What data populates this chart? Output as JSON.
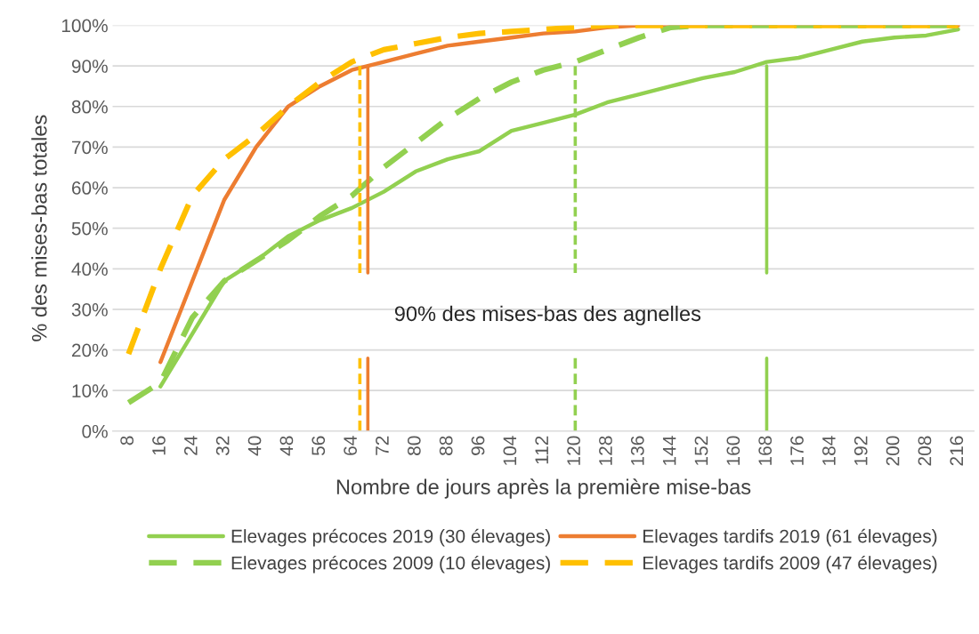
{
  "chart_data": {
    "type": "line",
    "xlabel": "Nombre de jours après la première mise-bas",
    "ylabel": "% des mises-bas totales",
    "annotations": [
      "90% des mises-bas des agnelles"
    ],
    "x": [
      8,
      16,
      24,
      32,
      40,
      48,
      56,
      64,
      72,
      80,
      88,
      96,
      104,
      112,
      120,
      128,
      136,
      144,
      152,
      160,
      168,
      176,
      184,
      192,
      200,
      208,
      216
    ],
    "series": [
      {
        "name": "Elevages précoces 2019 (30 élevages)",
        "color": "#92d050",
        "line_style": "solid",
        "values": [
          null,
          11,
          24,
          37,
          42,
          48,
          52,
          55,
          59,
          64,
          67,
          69,
          74,
          76,
          78,
          81,
          83,
          85,
          87,
          88.5,
          91,
          92,
          94,
          96,
          97,
          97.5,
          99
        ]
      },
      {
        "name": "Elevages tardifs 2019 (61 élevages)",
        "color": "#ed7d31",
        "line_style": "solid",
        "values": [
          null,
          17,
          37,
          57,
          70,
          80,
          85,
          89,
          91,
          93,
          95,
          96,
          97,
          98,
          98.5,
          99.5,
          100,
          100,
          100,
          100,
          100,
          100,
          100,
          100,
          100,
          100,
          100
        ]
      },
      {
        "name": "Elevages précoces 2009 (10 élevages)",
        "color": "#92d050",
        "line_style": "dashed",
        "values": [
          7,
          12,
          28,
          37,
          42,
          47,
          53,
          58,
          65,
          71,
          77,
          82,
          86,
          89,
          91,
          94,
          97,
          99.5,
          100,
          100,
          100,
          100,
          100,
          100,
          100,
          100,
          100
        ]
      },
      {
        "name": "Elevages tardifs 2009 (47 élevages)",
        "color": "#ffc000",
        "line_style": "dashed",
        "values": [
          19,
          40,
          58,
          67,
          73,
          80,
          86,
          91,
          94,
          95.5,
          97,
          98,
          98.5,
          99,
          99.5,
          100,
          100,
          100,
          100,
          100,
          100,
          100,
          100,
          100,
          100,
          100,
          100
        ]
      },
      {
        "x": [
          66,
          66
        ],
        "color": "#ffc000",
        "line_style": "dashed",
        "values": [
          0,
          18
        ]
      },
      {
        "x": [
          66,
          66
        ],
        "color": "#ffc000",
        "line_style": "dashed",
        "values": [
          39,
          90
        ]
      },
      {
        "x": [
          68,
          68
        ],
        "color": "#ed7d31",
        "line_style": "solid",
        "values": [
          0,
          18
        ]
      },
      {
        "x": [
          68,
          68
        ],
        "color": "#ed7d31",
        "line_style": "solid",
        "values": [
          39,
          90
        ]
      },
      {
        "x": [
          120,
          120
        ],
        "color": "#92d050",
        "line_style": "dashed",
        "values": [
          0,
          18
        ]
      },
      {
        "x": [
          120,
          120
        ],
        "color": "#92d050",
        "line_style": "dashed",
        "values": [
          39,
          90
        ]
      },
      {
        "x": [
          168,
          168
        ],
        "color": "#92d050",
        "line_style": "solid",
        "values": [
          0,
          18
        ]
      },
      {
        "x": [
          168,
          168
        ],
        "color": "#92d050",
        "line_style": "solid",
        "values": [
          39,
          90
        ]
      }
    ],
    "xlim": [
      4,
      220
    ],
    "xticks": [
      8,
      16,
      24,
      32,
      40,
      48,
      56,
      64,
      72,
      80,
      88,
      96,
      104,
      112,
      120,
      128,
      136,
      144,
      152,
      160,
      168,
      176,
      184,
      192,
      200,
      208,
      216
    ],
    "ylim": [
      0,
      100
    ],
    "yticks": [
      {
        "value": 0,
        "label": "0%"
      },
      {
        "value": 10,
        "label": "10%"
      },
      {
        "value": 20,
        "label": "20%"
      },
      {
        "value": 30,
        "label": "30%"
      },
      {
        "value": 40,
        "label": "40%"
      },
      {
        "value": 50,
        "label": "50%"
      },
      {
        "value": 60,
        "label": "60%"
      },
      {
        "value": 70,
        "label": "70%"
      },
      {
        "value": 80,
        "label": "80%"
      },
      {
        "value": 90,
        "label": "90%"
      },
      {
        "value": 100,
        "label": "100%"
      }
    ],
    "grid": "y",
    "legend": "bottom"
  }
}
